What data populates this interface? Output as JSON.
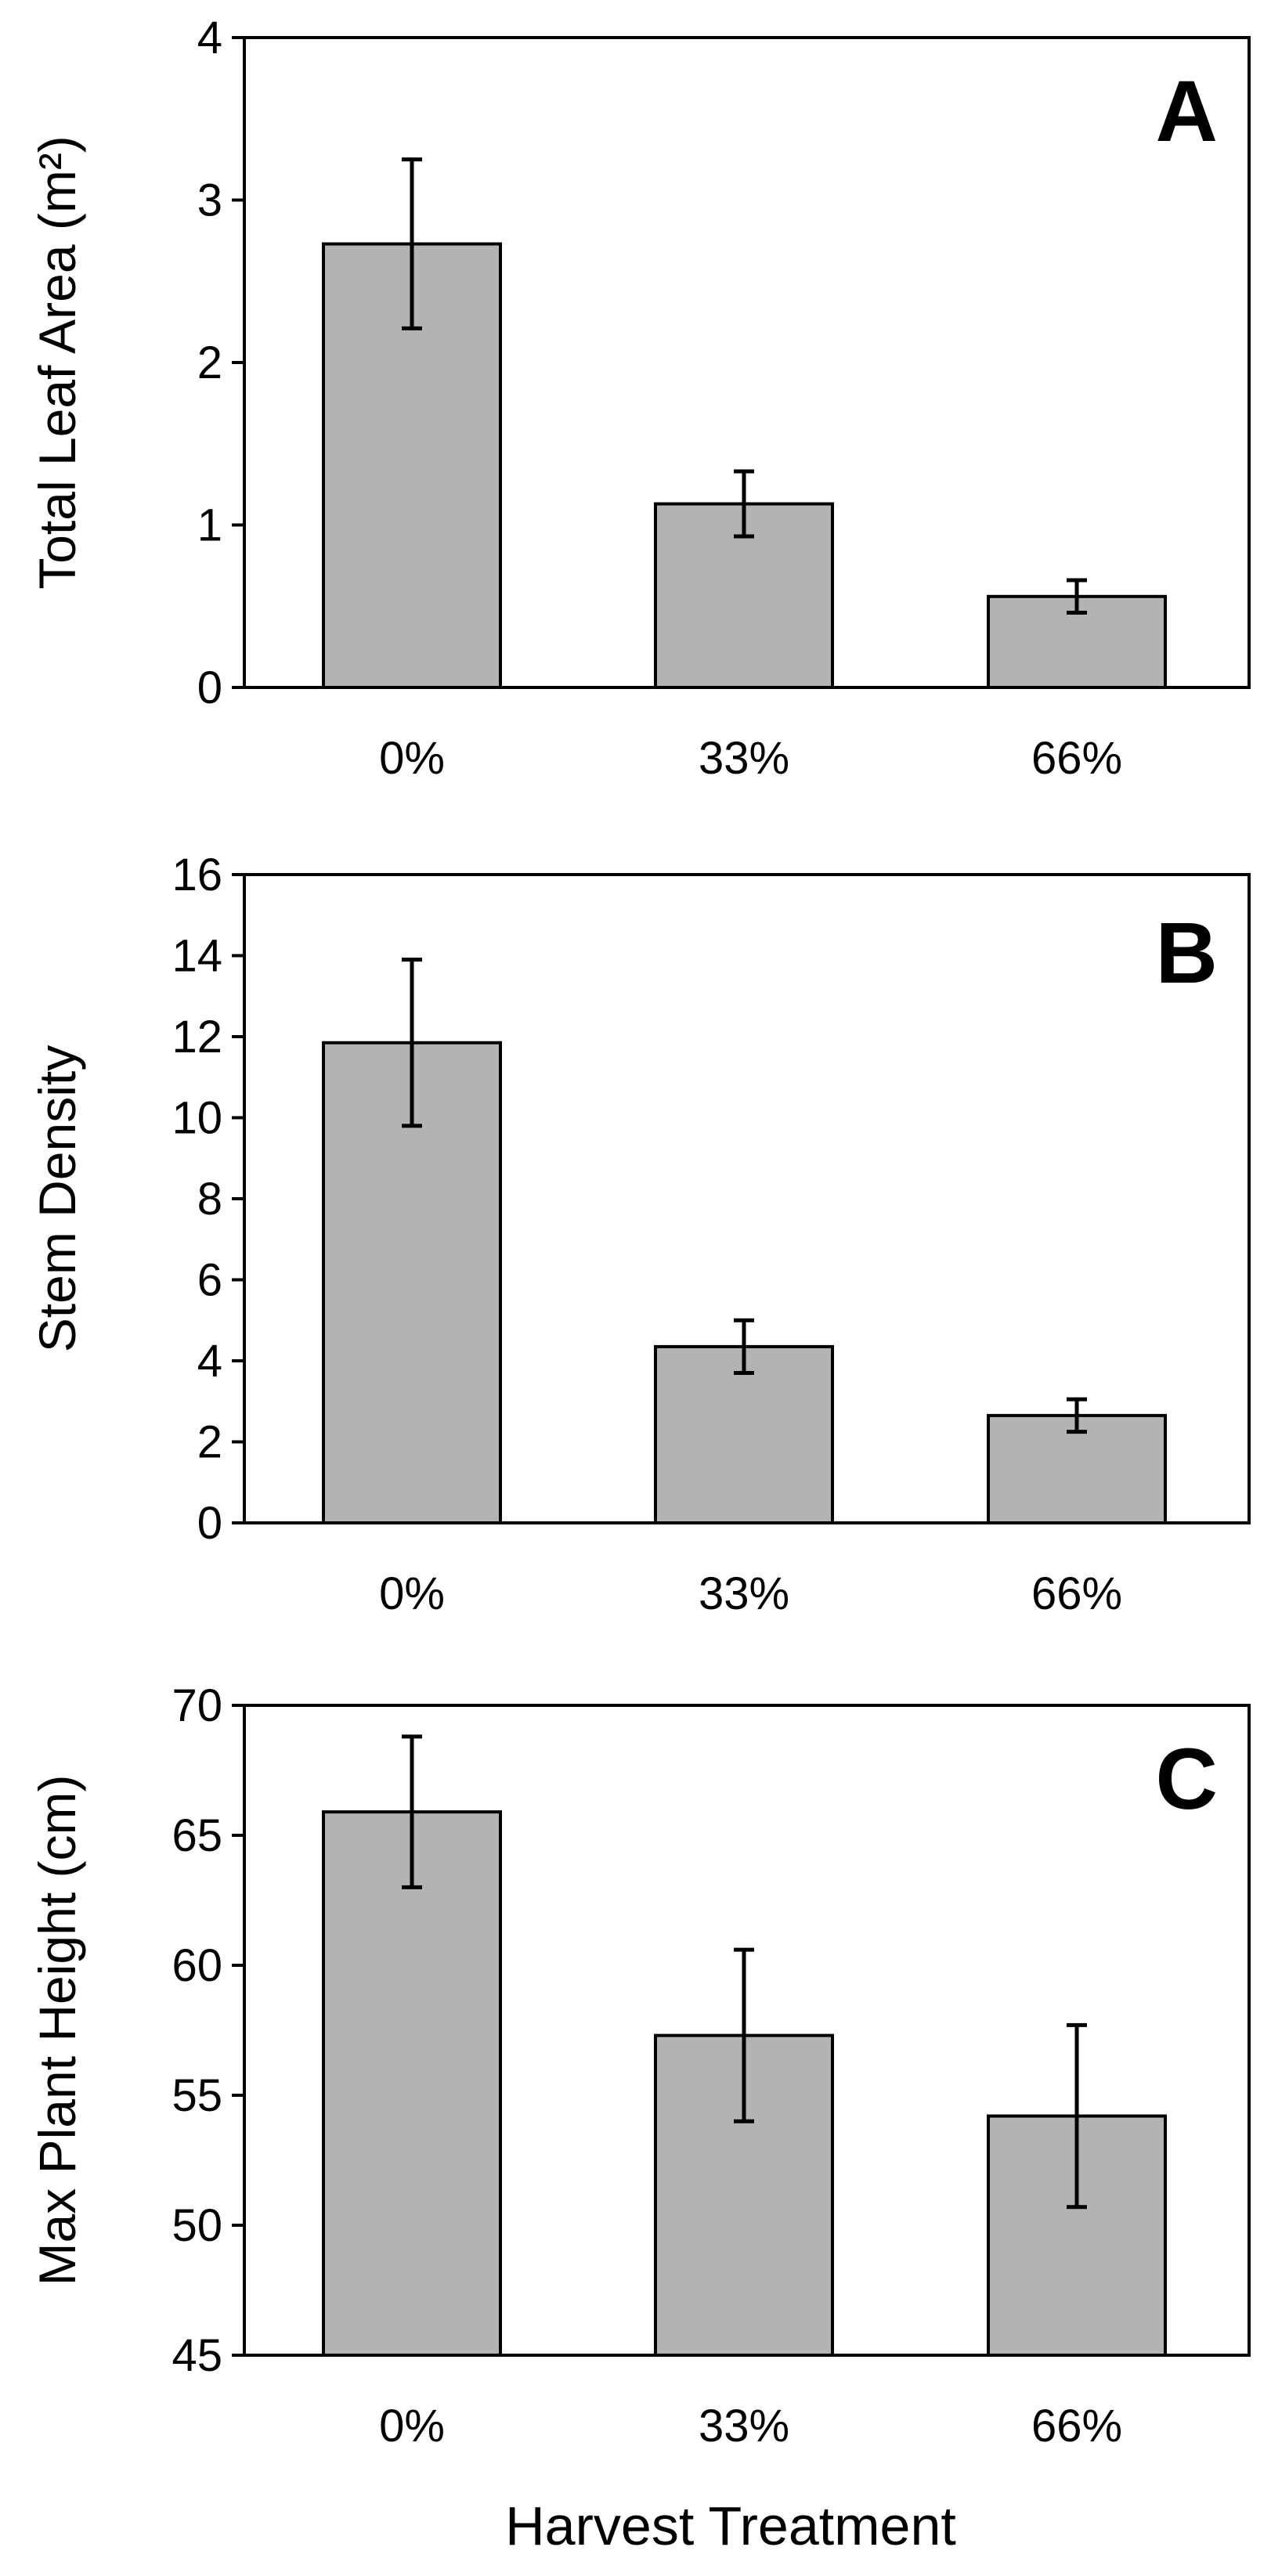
{
  "chart_data": [
    {
      "panel_label": "A",
      "type": "bar",
      "categories": [
        "0%",
        "33%",
        "66%"
      ],
      "values": [
        2.73,
        1.13,
        0.56
      ],
      "error": [
        0.52,
        0.2,
        0.1
      ],
      "ylabel": "Total Leaf Area (m²)",
      "ylim": [
        0,
        4
      ],
      "yticks": [
        "0",
        "1",
        "2",
        "3",
        "4"
      ],
      "grid": false
    },
    {
      "panel_label": "B",
      "type": "bar",
      "categories": [
        "0%",
        "33%",
        "66%"
      ],
      "values": [
        11.85,
        4.35,
        2.65
      ],
      "error": [
        2.05,
        0.65,
        0.4
      ],
      "ylabel": "Stem Density",
      "ylim": [
        0,
        16
      ],
      "yticks": [
        "0",
        "2",
        "4",
        "6",
        "8",
        "10",
        "12",
        "14",
        "16"
      ],
      "grid": false
    },
    {
      "panel_label": "C",
      "type": "bar",
      "categories": [
        "0%",
        "33%",
        "66%"
      ],
      "values": [
        65.9,
        57.3,
        54.2
      ],
      "error": [
        2.9,
        3.3,
        3.5
      ],
      "ylabel": "Max Plant Height (cm)",
      "ylim": [
        45,
        70
      ],
      "yticks": [
        "45",
        "50",
        "55",
        "60",
        "65",
        "70"
      ],
      "grid": false
    }
  ],
  "xlabel": "Harvest Treatment",
  "colors": {
    "bar_fill": "#b3b3b3",
    "bar_stroke": "#000000",
    "axis": "#000000"
  }
}
